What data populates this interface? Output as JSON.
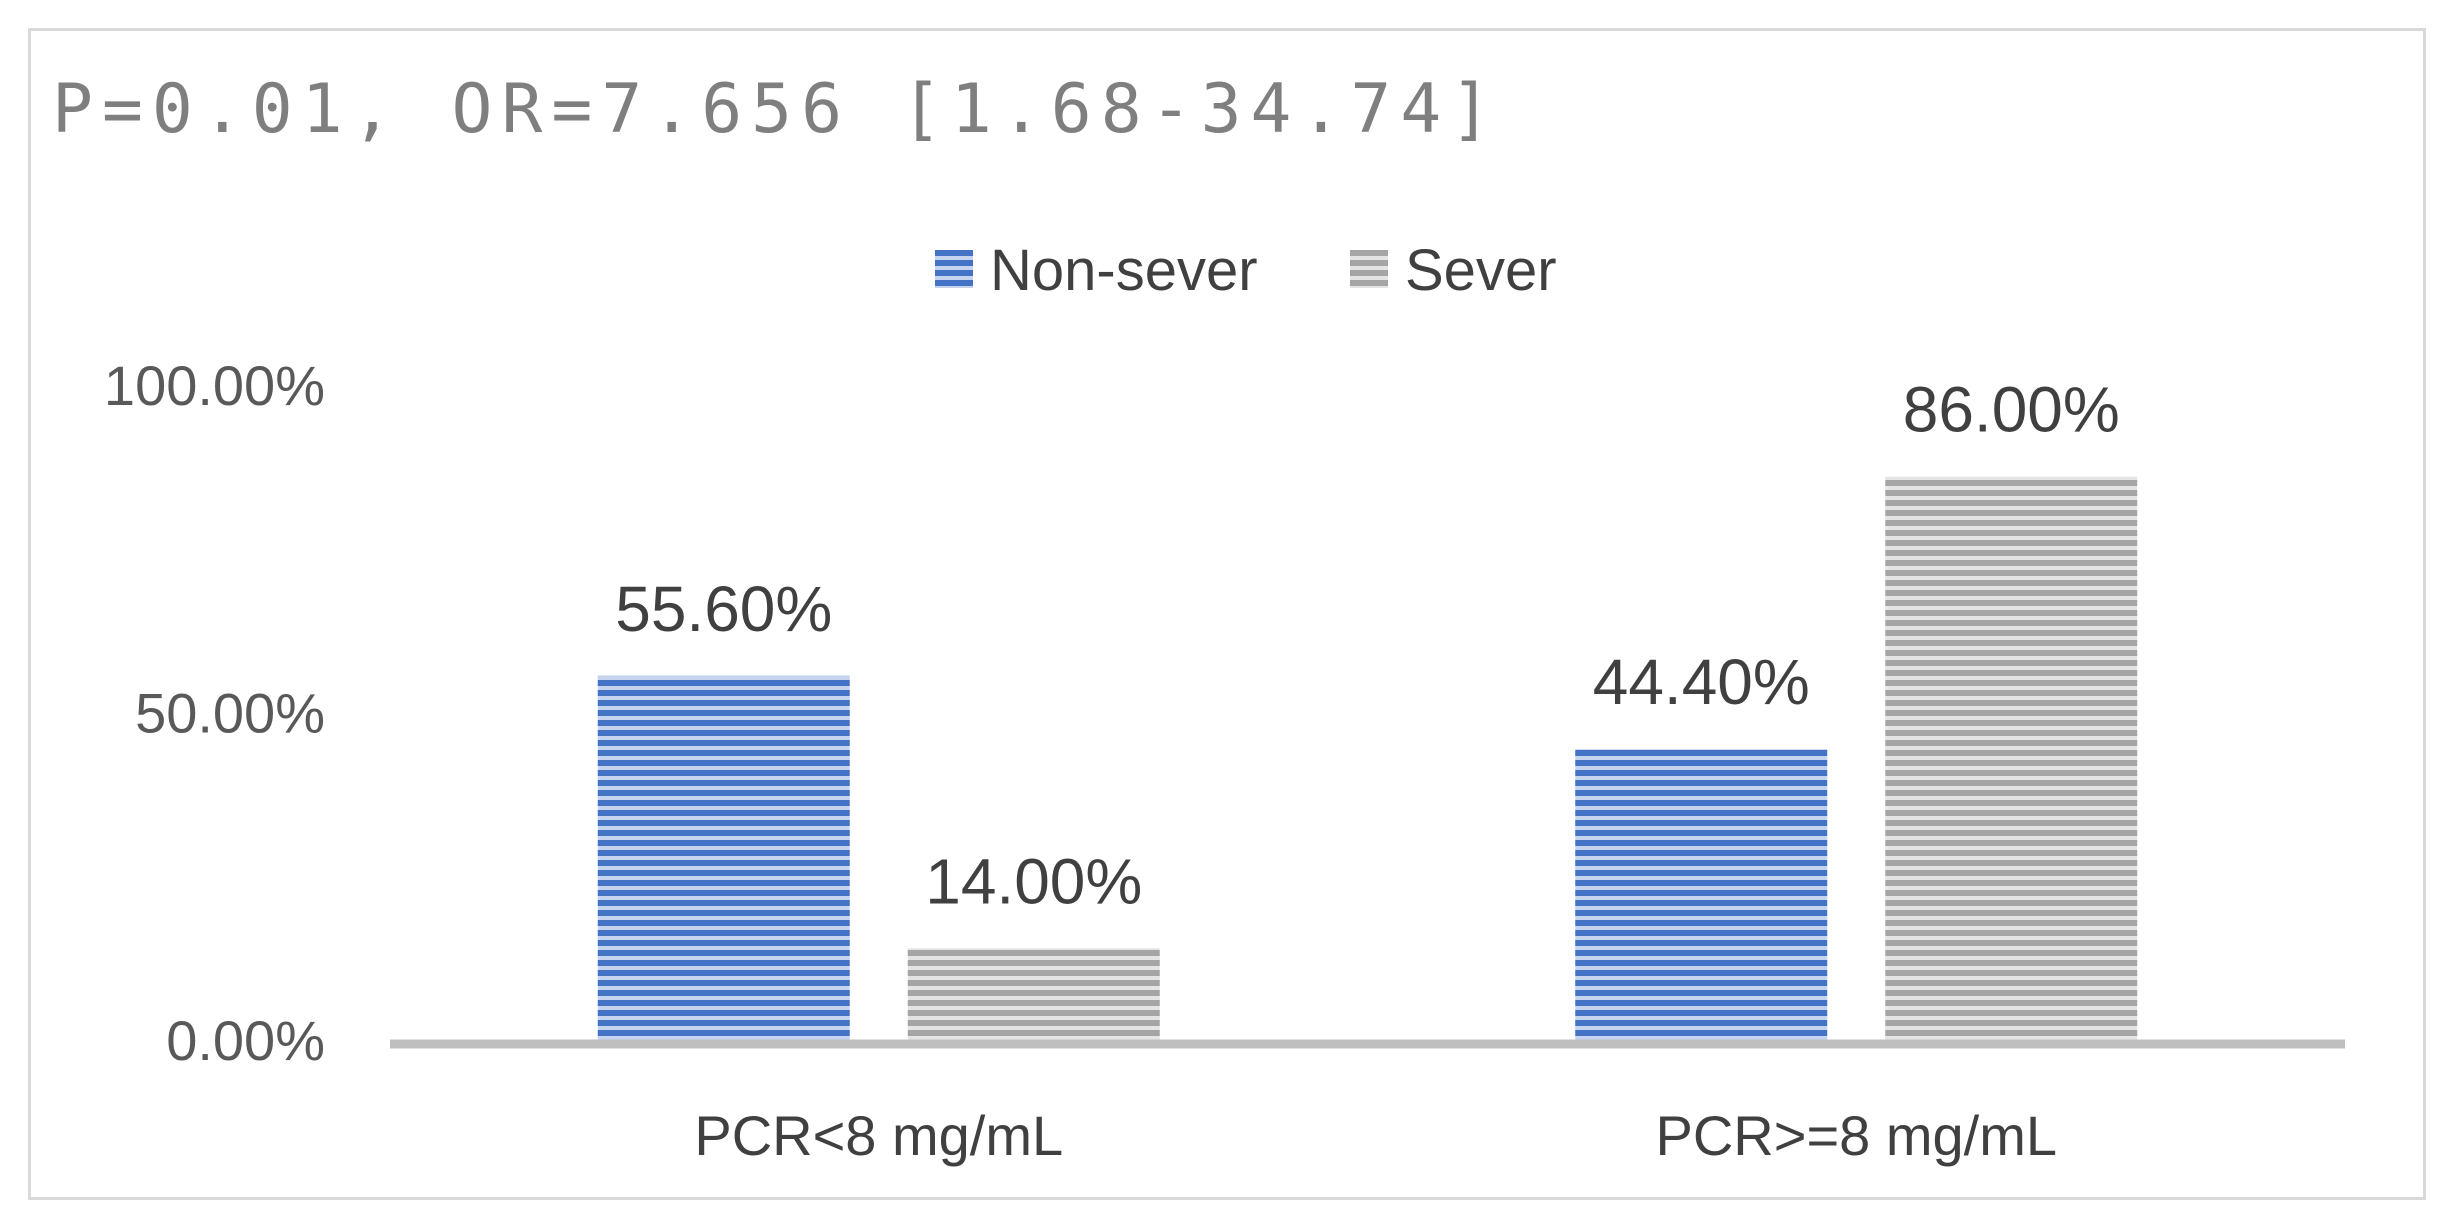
{
  "chart_data": {
    "type": "bar",
    "title": "P=0.01, OR=7.656 [1.68-34.74]",
    "categories": [
      "PCR<8 mg/mL",
      "PCR>=8 mg/mL"
    ],
    "series": [
      {
        "name": "Non-sever",
        "values": [
          55.6,
          44.4
        ],
        "labels": [
          "55.60%",
          "44.40%"
        ],
        "color": "#4472c4"
      },
      {
        "name": "Sever",
        "values": [
          14.0,
          86.0
        ],
        "labels": [
          "14.00%",
          "86.00%"
        ],
        "color": "#a5a5a5"
      }
    ],
    "yticks": [
      {
        "value": 0,
        "label": "0.00%"
      },
      {
        "value": 50,
        "label": "50.00%"
      },
      {
        "value": 100,
        "label": "100.00%"
      }
    ],
    "ylim": [
      0,
      100
    ],
    "grid": false,
    "legend_position": "top-center",
    "axis_color": "#bfbfbf"
  }
}
